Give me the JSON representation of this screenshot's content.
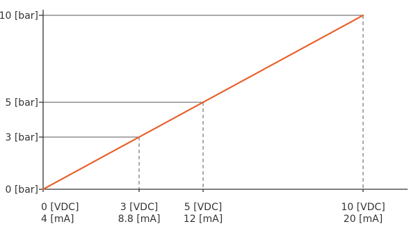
{
  "chart_data": {
    "type": "line",
    "title": "",
    "xlabel": "",
    "ylabel": "",
    "x_unit_labels": [
      "[VDC]",
      "[mA]"
    ],
    "y_unit_label": "[bar]",
    "xlim": [
      0,
      10
    ],
    "ylim": [
      0,
      10
    ],
    "series": [
      {
        "color": "#e8612c",
        "x": [
          0,
          10
        ],
        "y": [
          0,
          10
        ]
      }
    ],
    "x_ticks": [
      {
        "value": 0,
        "line1": "0 [VDC]",
        "line2": "4 [mA]"
      },
      {
        "value": 3,
        "line1": "3 [VDC]",
        "line2": "8.8 [mA]"
      },
      {
        "value": 5,
        "line1": "5 [VDC]",
        "line2": "12 [mA]"
      },
      {
        "value": 10,
        "line1": "10 [VDC]",
        "line2": "20 [mA]"
      }
    ],
    "y_ticks": [
      {
        "value": 0,
        "label": "0 [bar]"
      },
      {
        "value": 3,
        "label": "3 [bar]"
      },
      {
        "value": 5,
        "label": "5 [bar]"
      },
      {
        "value": 10,
        "label": "10 [bar]"
      }
    ],
    "guides": [
      {
        "x": 3,
        "y": 3
      },
      {
        "x": 5,
        "y": 5
      },
      {
        "x": 10,
        "y": 10
      }
    ],
    "axis_color": "#333333",
    "guide_color": "#555555",
    "grid": false,
    "legend": "none"
  }
}
